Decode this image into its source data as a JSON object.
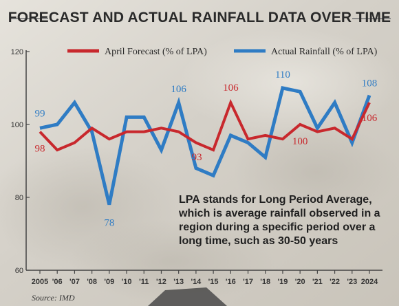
{
  "title": "FORECAST AND ACTUAL RAINFALL DATA OVER TIME",
  "note": "LPA stands for Long Period Average, which is average rainfall observed in a region during a specific period over a long time, such as 30-50 years",
  "source": "Source: IMD",
  "colors": {
    "forecast": "#c8282d",
    "actual": "#2f7cc4",
    "axis": "#444444"
  },
  "chart_data": {
    "type": "line",
    "x": [
      "2005",
      "'06",
      "'07",
      "'08",
      "'09",
      "'10",
      "'11",
      "'12",
      "'13",
      "'14",
      "'15",
      "'16",
      "'17",
      "'18",
      "'19",
      "'20",
      "'21",
      "'22",
      "'23",
      "2024"
    ],
    "ylim": [
      60,
      120
    ],
    "yticks": [
      60,
      80,
      100,
      120
    ],
    "grid": false,
    "legend_position": "top",
    "series": [
      {
        "name": "April Forecast (% of LPA)",
        "color": "#c8282d",
        "values": [
          98,
          93,
          95,
          99,
          96,
          98,
          98,
          99,
          98,
          95,
          93,
          106,
          96,
          97,
          96,
          100,
          98,
          99,
          96,
          106
        ]
      },
      {
        "name": "Actual Rainfall (% of LPA)",
        "color": "#2f7cc4",
        "values": [
          99,
          100,
          106,
          98,
          78,
          102,
          102,
          93,
          106,
          88,
          86,
          97,
          95,
          91,
          110,
          109,
          99,
          106,
          95,
          108
        ]
      }
    ],
    "annotations": [
      {
        "series": 1,
        "index": 0,
        "text": "99"
      },
      {
        "series": 0,
        "index": 0,
        "text": "98"
      },
      {
        "series": 1,
        "index": 4,
        "text": "78"
      },
      {
        "series": 1,
        "index": 8,
        "text": "106"
      },
      {
        "series": 0,
        "index": 10,
        "text": "93"
      },
      {
        "series": 0,
        "index": 11,
        "text": "106"
      },
      {
        "series": 1,
        "index": 14,
        "text": "110"
      },
      {
        "series": 0,
        "index": 15,
        "text": "100"
      },
      {
        "series": 1,
        "index": 19,
        "text": "108"
      },
      {
        "series": 0,
        "index": 19,
        "text": "106"
      }
    ]
  }
}
